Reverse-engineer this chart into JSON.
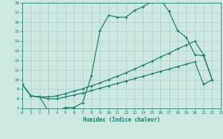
{
  "xlabel": "Humidex (Indice chaleur)",
  "background_color": "#cce8e0",
  "grid_color": "#aacccc",
  "line_color": "#1a7a6a",
  "xlim": [
    0,
    23
  ],
  "ylim": [
    7,
    18
  ],
  "xticks": [
    0,
    1,
    2,
    3,
    4,
    5,
    6,
    7,
    8,
    9,
    10,
    11,
    12,
    13,
    14,
    15,
    16,
    17,
    18,
    19,
    20,
    21,
    22,
    23
  ],
  "yticks": [
    7,
    8,
    9,
    10,
    11,
    12,
    13,
    14,
    15,
    16,
    17,
    18
  ],
  "line1_x": [
    0,
    1,
    2,
    3,
    4,
    5,
    6,
    7,
    8,
    9,
    10,
    11,
    12,
    13,
    14,
    15,
    16,
    17,
    18,
    19,
    20,
    21,
    22
  ],
  "line1_y": [
    9.5,
    8.3,
    8.2,
    6.75,
    6.75,
    7.1,
    7.1,
    7.6,
    10.4,
    15.1,
    16.7,
    16.5,
    16.5,
    17.2,
    17.6,
    18.1,
    18.4,
    17.1,
    15.1,
    14.4,
    12.6,
    12.5,
    10.0
  ],
  "line2_x": [
    0,
    1,
    2,
    3,
    4,
    5,
    6,
    7,
    8,
    9,
    10,
    11,
    12,
    13,
    14,
    15,
    16,
    17,
    18,
    19,
    20,
    21,
    22
  ],
  "line2_y": [
    9.5,
    8.3,
    8.2,
    8.2,
    8.3,
    8.55,
    8.8,
    9.05,
    9.35,
    9.65,
    10.0,
    10.35,
    10.7,
    11.1,
    11.5,
    11.9,
    12.35,
    12.75,
    13.2,
    13.6,
    14.0,
    12.6,
    10.0
  ],
  "line3_x": [
    0,
    1,
    2,
    3,
    4,
    5,
    6,
    7,
    8,
    9,
    10,
    11,
    12,
    13,
    14,
    15,
    16,
    17,
    18,
    19,
    20,
    21,
    22
  ],
  "line3_y": [
    9.5,
    8.3,
    8.2,
    8.0,
    8.0,
    8.2,
    8.4,
    8.6,
    8.85,
    9.1,
    9.35,
    9.6,
    9.85,
    10.1,
    10.35,
    10.6,
    10.85,
    11.1,
    11.35,
    11.6,
    11.85,
    9.5,
    10.0
  ],
  "markersize": 3,
  "linewidth": 0.9
}
